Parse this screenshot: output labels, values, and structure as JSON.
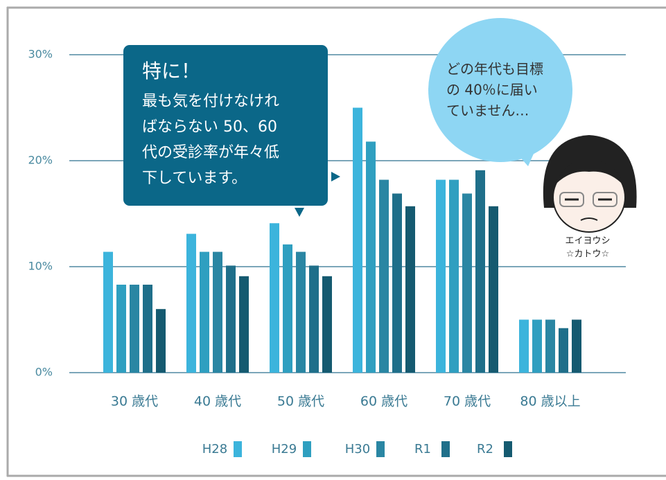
{
  "chart_data": {
    "type": "bar",
    "categories": [
      "30 歳代",
      "40 歳代",
      "50 歳代",
      "60 歳代",
      "70 歳代",
      "80 歳以上"
    ],
    "series": [
      {
        "name": "H28",
        "color": "#3cb4dc",
        "values": [
          11.4,
          13.1,
          14.1,
          25.0,
          18.2,
          5.0
        ]
      },
      {
        "name": "H29",
        "color": "#2f9fc0",
        "values": [
          8.3,
          11.4,
          12.1,
          21.8,
          18.2,
          5.0
        ]
      },
      {
        "name": "H30",
        "color": "#2a86a3",
        "values": [
          8.3,
          11.4,
          11.4,
          18.2,
          16.9,
          5.0
        ]
      },
      {
        "name": "R1",
        "color": "#1f6f8a",
        "values": [
          8.3,
          10.1,
          10.1,
          16.9,
          19.1,
          4.2
        ]
      },
      {
        "name": "R2",
        "color": "#155a70",
        "values": [
          6.0,
          9.1,
          9.1,
          15.7,
          15.7,
          5.0
        ]
      }
    ],
    "ylim": [
      0,
      30
    ],
    "yticks": [
      {
        "value": 0,
        "label": "0%"
      },
      {
        "value": 10,
        "label": "10%"
      },
      {
        "value": 20,
        "label": "20%"
      },
      {
        "value": 30,
        "label": "30%"
      }
    ],
    "grid": true
  },
  "callout": {
    "title": "特に！",
    "lines": [
      "最も気を付けなけれ",
      "ばならない 50、60",
      "代の受診率が年々低",
      "下しています。"
    ]
  },
  "speech_bubble": {
    "lines": [
      "どの年代も目標",
      "の 40％に届い",
      "ていません…"
    ]
  },
  "character": {
    "lines": [
      "エイヨウシ",
      "☆カトウ☆"
    ]
  }
}
